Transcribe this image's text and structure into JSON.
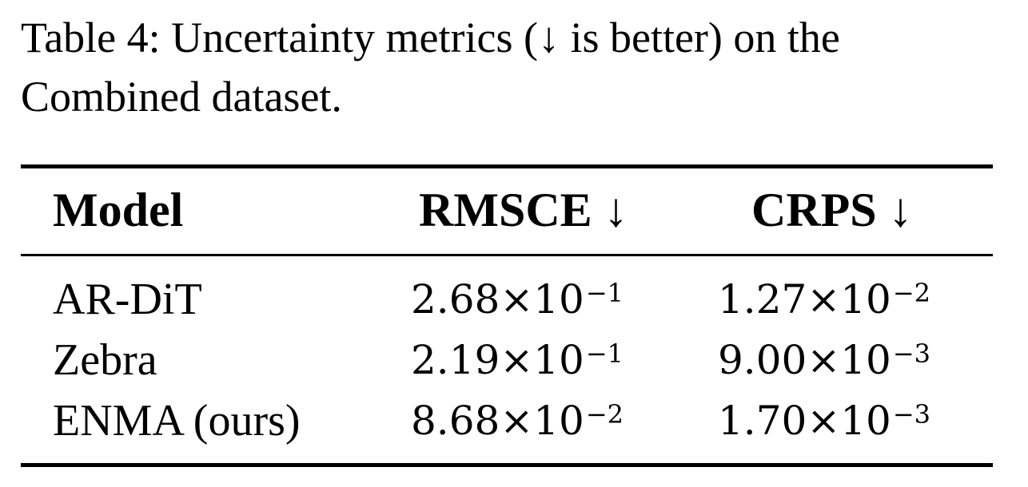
{
  "caption": "Table 4: Uncertainty metrics (↓ is better) on the Combined dataset.",
  "table": {
    "headers": {
      "model": "Model",
      "rmsce": "RMSCE ↓",
      "crps": "CRPS ↓"
    },
    "rows": [
      {
        "model": "AR-DiT",
        "rmsce": {
          "mantissa": "2.68×10",
          "exponent": "−1"
        },
        "crps": {
          "mantissa": "1.27×10",
          "exponent": "−2"
        }
      },
      {
        "model": "Zebra",
        "rmsce": {
          "mantissa": "2.19×10",
          "exponent": "−1"
        },
        "crps": {
          "mantissa": "9.00×10",
          "exponent": "−3"
        }
      },
      {
        "model": "ENMA (ours)",
        "rmsce": {
          "mantissa": "8.68×10",
          "exponent": "−2"
        },
        "crps": {
          "mantissa": "1.70×10",
          "exponent": "−3"
        }
      }
    ]
  }
}
